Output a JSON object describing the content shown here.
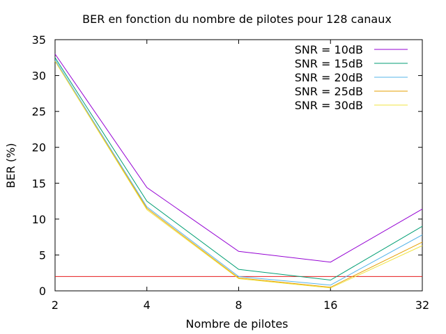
{
  "chart_data": {
    "type": "line",
    "title": "BER en fonction du nombre de pilotes pour 128 canaux",
    "xlabel": "Nombre de pilotes",
    "ylabel": "BER (%)",
    "x_scale": "log2",
    "x": [
      2,
      4,
      8,
      16,
      32
    ],
    "x_ticks": [
      "2",
      "4",
      "8",
      "16",
      "32"
    ],
    "xlim": [
      2,
      32
    ],
    "ylim": [
      0,
      35
    ],
    "y_ticks": [
      "0",
      "5",
      "10",
      "15",
      "20",
      "25",
      "30",
      "35"
    ],
    "y_tick_values": [
      0,
      5,
      10,
      15,
      20,
      25,
      30,
      35
    ],
    "grid": false,
    "legend_position": "top-right",
    "series": [
      {
        "name": "SNR = 10dB",
        "color": "#9400d3",
        "values": [
          33.0,
          14.4,
          5.5,
          4.0,
          11.4
        ]
      },
      {
        "name": "SNR = 15dB",
        "color": "#009e73",
        "values": [
          32.5,
          12.5,
          3.0,
          1.5,
          9.0
        ]
      },
      {
        "name": "SNR = 20dB",
        "color": "#56b4e9",
        "values": [
          32.2,
          11.7,
          2.0,
          0.8,
          7.8
        ]
      },
      {
        "name": "SNR = 25dB",
        "color": "#e69f00",
        "values": [
          32.0,
          11.5,
          1.8,
          0.5,
          6.8
        ]
      },
      {
        "name": "SNR = 30dB",
        "color": "#f0e442",
        "values": [
          32.0,
          11.3,
          1.7,
          0.4,
          6.3
        ]
      }
    ],
    "reference_line": {
      "y": 2,
      "color": "#e41a1c"
    }
  }
}
